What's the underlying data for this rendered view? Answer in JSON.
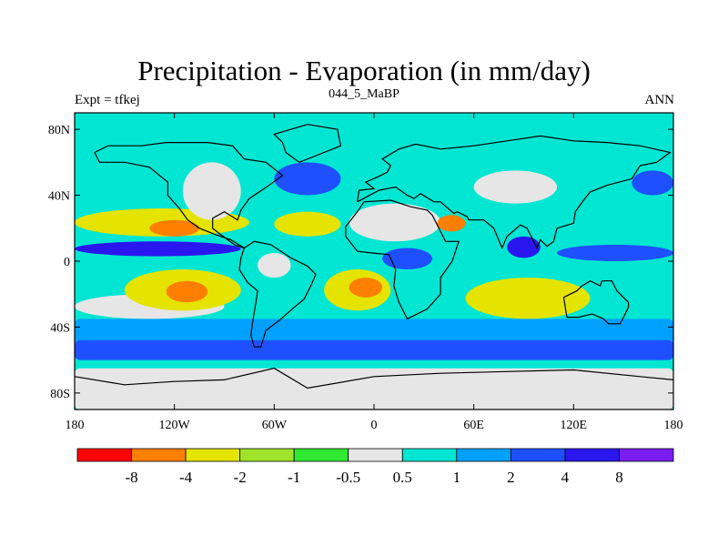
{
  "title": "Precipitation - Evaporation (in mm/day)",
  "subtitle": "044_5_MaBP",
  "left_label": "Expt = tfkej",
  "right_label": "ANN",
  "colors": {
    "c0": "#ff0000",
    "c1": "#ff7f00",
    "c2": "#e4e400",
    "c3": "#9fe42b",
    "c4": "#31e831",
    "c5": "#e6e6e6",
    "c6": "#00e6d2",
    "c7": "#00a0ff",
    "c8": "#1e50ff",
    "c9": "#2a16ee",
    "c10": "#7a1ef0",
    "coast": "#000000"
  },
  "chart_data": {
    "type": "heatmap",
    "variable": "Precipitation - Evaporation",
    "units": "mm/day",
    "xlim": [
      -180,
      180
    ],
    "ylim": [
      -90,
      90
    ],
    "x_ticks": [
      "180",
      "120W",
      "60W",
      "0",
      "60E",
      "120E",
      "180"
    ],
    "y_ticks": [
      "80N",
      "40N",
      "0",
      "40S",
      "80S"
    ],
    "colorbar": {
      "levels": [
        "-8",
        "-4",
        "-2",
        "-1",
        "-0.5",
        "0.5",
        "1",
        "2",
        "4",
        "8"
      ],
      "colors": [
        "#ff0000",
        "#ff7f00",
        "#e4e400",
        "#9fe42b",
        "#31e831",
        "#e6e6e6",
        "#00e6d2",
        "#00a0ff",
        "#1e50ff",
        "#2a16ee",
        "#7a1ef0"
      ]
    },
    "regions": [
      {
        "name": "southern-ocean-band",
        "lat": [
          -60,
          -35
        ],
        "lon": [
          -180,
          180
        ],
        "class": 7
      },
      {
        "name": "southern-ocean-deep-blue",
        "lat": [
          -60,
          -48
        ],
        "lon": [
          -180,
          180
        ],
        "class": 8
      },
      {
        "name": "south-pacific-gray",
        "lat": [
          -35,
          -20
        ],
        "lon": [
          -180,
          -90
        ],
        "class": 5
      },
      {
        "name": "south-pacific-yellow",
        "lat": [
          -30,
          -5
        ],
        "lon": [
          -150,
          -80
        ],
        "class": 2
      },
      {
        "name": "south-pacific-orange",
        "lat": [
          -25,
          -12
        ],
        "lon": [
          -125,
          -100
        ],
        "class": 1
      },
      {
        "name": "south-atlantic-yellow",
        "lat": [
          -30,
          -5
        ],
        "lon": [
          -30,
          10
        ],
        "class": 2
      },
      {
        "name": "south-atlantic-orange",
        "lat": [
          -22,
          -10
        ],
        "lon": [
          -15,
          5
        ],
        "class": 1
      },
      {
        "name": "south-indian-yellow",
        "lat": [
          -35,
          -10
        ],
        "lon": [
          55,
          130
        ],
        "class": 2
      },
      {
        "name": "north-pacific-yellow",
        "lat": [
          15,
          32
        ],
        "lon": [
          -180,
          -75
        ],
        "class": 2
      },
      {
        "name": "north-pacific-orange",
        "lat": [
          15,
          25
        ],
        "lon": [
          -135,
          -105
        ],
        "class": 1
      },
      {
        "name": "itcz-pacific",
        "lat": [
          3,
          12
        ],
        "lon": [
          -180,
          -80
        ],
        "class": 9
      },
      {
        "name": "itcz-pacific-west",
        "lat": [
          0,
          10
        ],
        "lon": [
          110,
          180
        ],
        "class": 8
      },
      {
        "name": "north-atlantic-yellow",
        "lat": [
          15,
          30
        ],
        "lon": [
          -60,
          -20
        ],
        "class": 2
      },
      {
        "name": "north-africa-gray",
        "lat": [
          12,
          35
        ],
        "lon": [
          -15,
          40
        ],
        "class": 5
      },
      {
        "name": "arabia-orange",
        "lat": [
          18,
          28
        ],
        "lon": [
          38,
          55
        ],
        "class": 1
      },
      {
        "name": "central-africa-blue",
        "lat": [
          -5,
          8
        ],
        "lon": [
          5,
          35
        ],
        "class": 8
      },
      {
        "name": "amazon-gray",
        "lat": [
          -10,
          5
        ],
        "lon": [
          -70,
          -50
        ],
        "class": 5
      },
      {
        "name": "north-america-gray",
        "lat": [
          25,
          60
        ],
        "lon": [
          -115,
          -80
        ],
        "class": 5
      },
      {
        "name": "eurasia-gray",
        "lat": [
          35,
          55
        ],
        "lon": [
          60,
          110
        ],
        "class": 5
      },
      {
        "name": "north-atlantic-storm",
        "lat": [
          40,
          60
        ],
        "lon": [
          -60,
          -20
        ],
        "class": 8
      },
      {
        "name": "north-pacific-storm",
        "lat": [
          40,
          55
        ],
        "lon": [
          155,
          180
        ],
        "class": 8
      },
      {
        "name": "india-bay-purple",
        "lat": [
          2,
          15
        ],
        "lon": [
          80,
          100
        ],
        "class": 9
      },
      {
        "name": "antarctica-gray",
        "lat": [
          -90,
          -65
        ],
        "lon": [
          -180,
          180
        ],
        "class": 5
      }
    ]
  }
}
